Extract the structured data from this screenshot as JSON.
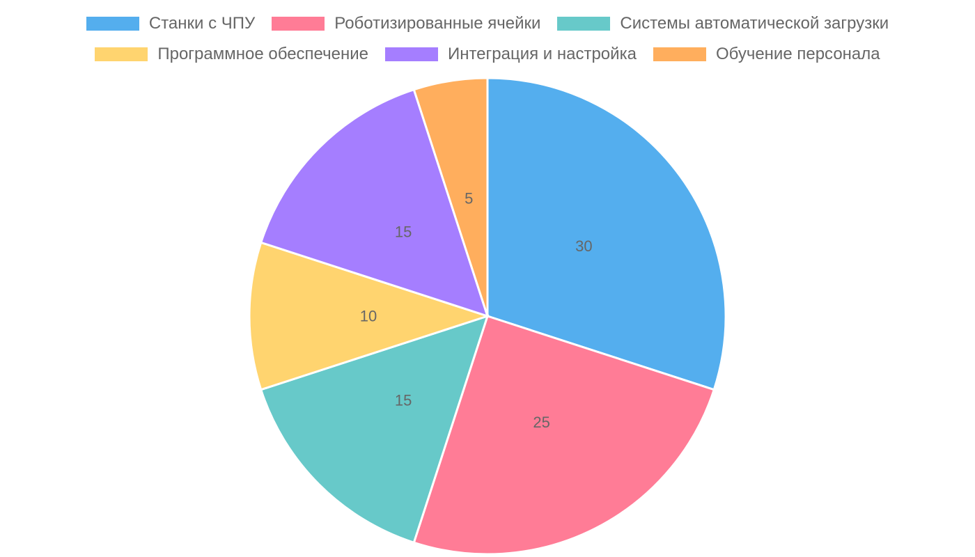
{
  "chart_data": {
    "type": "pie",
    "title": "",
    "categories": [
      "Станки с ЧПУ",
      "Роботизированные ячейки",
      "Системы автоматической загрузки",
      "Программное обеспечение",
      "Интеграция и настройка",
      "Обучение персонала"
    ],
    "values": [
      30,
      25,
      15,
      10,
      15,
      5
    ],
    "colors": [
      "#54aeee",
      "#ff7c96",
      "#67c9c9",
      "#ffd46f",
      "#a57eff",
      "#ffae5d"
    ],
    "legend_position": "top",
    "data_labels": [
      "30",
      "25",
      "15",
      "10",
      "15",
      "5"
    ]
  },
  "legend": {
    "rows": [
      [
        {
          "label": "Станки с ЧПУ",
          "color": "#54aeee"
        },
        {
          "label": "Роботизированные ячейки",
          "color": "#ff7c96"
        },
        {
          "label": "Системы автоматической загрузки",
          "color": "#67c9c9"
        }
      ],
      [
        {
          "label": "Программное обеспечение",
          "color": "#ffd46f"
        },
        {
          "label": "Интеграция и настройка",
          "color": "#a57eff"
        },
        {
          "label": "Обучение персонала",
          "color": "#ffae5d"
        }
      ]
    ]
  }
}
